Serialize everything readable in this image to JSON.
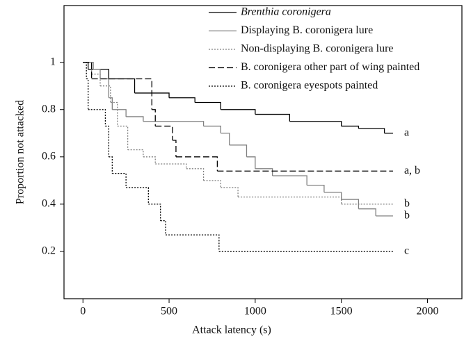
{
  "chart_data": {
    "type": "step",
    "xlabel": "Attack latency (s)",
    "ylabel": "Proportion not attacked",
    "xlim": [
      -110,
      2200
    ],
    "ylim": [
      0,
      1.24
    ],
    "xticks": [
      0,
      500,
      1000,
      1500,
      2000
    ],
    "yticks": [
      0.2,
      0.4,
      0.6,
      0.8,
      1
    ],
    "legend": "upper right",
    "series": [
      {
        "name": "Brenthia coronigera",
        "color": "#000000",
        "line_style": "solid",
        "label": "a",
        "x": [
          0,
          30,
          150,
          300,
          500,
          650,
          800,
          1000,
          1200,
          1500,
          1600,
          1750,
          1800
        ],
        "values": [
          1,
          0.97,
          0.93,
          0.87,
          0.85,
          0.83,
          0.8,
          0.78,
          0.75,
          0.73,
          0.72,
          0.7,
          0.7
        ]
      },
      {
        "name": "Displaying B. coronigera lure",
        "color": "#808080",
        "line_style": "solid",
        "label": "b",
        "x": [
          0,
          60,
          100,
          150,
          170,
          250,
          350,
          700,
          800,
          850,
          950,
          1000,
          1100,
          1300,
          1400,
          1500,
          1600,
          1700,
          1800
        ],
        "values": [
          1,
          0.97,
          0.93,
          0.85,
          0.8,
          0.77,
          0.75,
          0.73,
          0.7,
          0.65,
          0.6,
          0.55,
          0.52,
          0.48,
          0.45,
          0.42,
          0.38,
          0.35,
          0.35
        ]
      },
      {
        "name": "Non-displaying B. coronigera lure",
        "color": "#808080",
        "line_style": "dotted",
        "label": "b",
        "x": [
          0,
          50,
          100,
          160,
          200,
          260,
          350,
          420,
          600,
          700,
          800,
          900,
          1500,
          1800
        ],
        "values": [
          1,
          0.95,
          0.9,
          0.83,
          0.73,
          0.63,
          0.6,
          0.57,
          0.55,
          0.5,
          0.47,
          0.43,
          0.4,
          0.4
        ]
      },
      {
        "name": "B. coronigera other part of wing painted",
        "color": "#000000",
        "line_style": "dashed",
        "label": "a, b",
        "x": [
          0,
          50,
          150,
          400,
          420,
          520,
          540,
          780,
          1800
        ],
        "values": [
          1,
          0.93,
          0.93,
          0.8,
          0.73,
          0.67,
          0.6,
          0.54,
          0.54
        ]
      },
      {
        "name": "B. coronigera eyespots painted",
        "color": "#000000",
        "line_style": "dotted",
        "label": "c",
        "x": [
          0,
          20,
          30,
          130,
          150,
          170,
          250,
          380,
          450,
          480,
          790,
          1800
        ],
        "values": [
          1,
          0.93,
          0.8,
          0.73,
          0.6,
          0.53,
          0.47,
          0.4,
          0.33,
          0.27,
          0.2,
          0.2
        ]
      }
    ]
  }
}
